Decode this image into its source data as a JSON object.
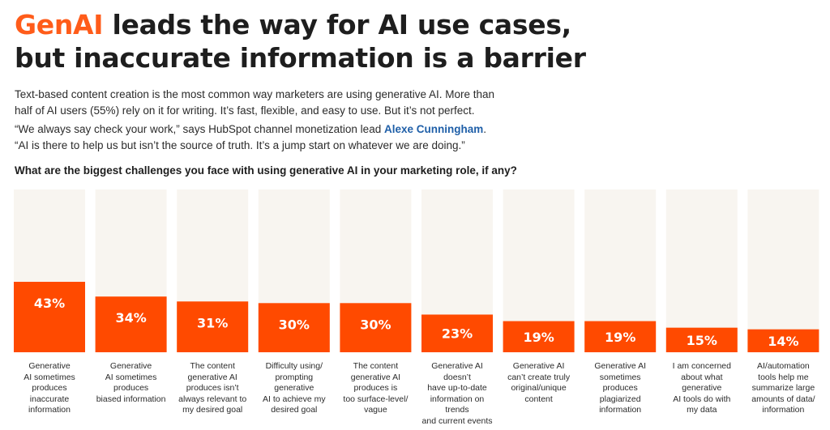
{
  "header": {
    "title_accent": "GenAI",
    "title_line1_rest": " leads the way for AI use cases,",
    "title_line2": "but inaccurate information is a barrier"
  },
  "body": {
    "para1_line1": "Text-based content creation is the most common way marketers are using generative AI. More than",
    "para1_line2": "half of AI users (55%) rely on it for writing. It’s fast, flexible, and easy to use. But it’s not perfect.",
    "para2_line1_prefix": "“We always say check your work,” says HubSpot channel monetization lead ",
    "para2_link": "Alexe Cunningham",
    "para2_line1_suffix": ".",
    "para2_line2": "“AI is there to help us but isn’t the source of truth. It’s a jump start on whatever we are doing.”"
  },
  "colors": {
    "bar": "#ff4a00",
    "track": "#f8f5f0",
    "accent_text": "#ff5c1a",
    "link": "#1f5fa8"
  },
  "chart_data": {
    "type": "bar",
    "title": "What are the biggest challenges you face with using generative AI in your marketing role, if any?",
    "categories": [
      "Generative AI sometimes produces inaccurate information",
      "Generative AI sometimes produces biased information",
      "The content generative AI produces isn’t always relevant to my desired goal",
      "Difficulty using/ prompting generative AI to achieve my desired goal",
      "The content generative AI produces is too surface-level/ vague",
      "Generative AI doesn’t have up-to-date information on trends and current events",
      "Generative AI can’t create truly original/unique content",
      "Generative AI sometimes produces plagiarized information",
      "I am concerned about what generative AI tools do with my data",
      "AI/automation tools help me summarize large amounts of data/ information"
    ],
    "category_lines": [
      [
        "Generative",
        "AI sometimes",
        "produces inaccurate",
        "information"
      ],
      [
        "Generative",
        "AI sometimes",
        "produces",
        "biased information"
      ],
      [
        "The content",
        "generative AI",
        "produces isn’t",
        "always relevant to",
        "my desired goal"
      ],
      [
        "Difficulty using/",
        "prompting generative",
        "AI to achieve my",
        "desired goal"
      ],
      [
        "The content",
        "generative AI",
        "produces is",
        "too surface-level/",
        "vague"
      ],
      [
        "Generative AI doesn’t",
        "have up-to-date",
        "information on trends",
        "and current events"
      ],
      [
        "Generative AI",
        "can’t create truly",
        "original/unique",
        "content"
      ],
      [
        "Generative AI",
        "sometimes produces",
        "plagiarized",
        "information"
      ],
      [
        "I am concerned",
        "about what",
        "generative",
        "AI tools do with",
        "my data"
      ],
      [
        "AI/automation",
        "tools help me",
        "summarize large",
        "amounts of data/",
        "information"
      ]
    ],
    "values": [
      43,
      34,
      31,
      30,
      30,
      23,
      19,
      19,
      15,
      14
    ],
    "value_labels": [
      "43%",
      "34%",
      "31%",
      "30%",
      "30%",
      "23%",
      "19%",
      "19%",
      "15%",
      "14%"
    ],
    "ylim": [
      0,
      100
    ],
    "grid": false,
    "legend": "none"
  }
}
